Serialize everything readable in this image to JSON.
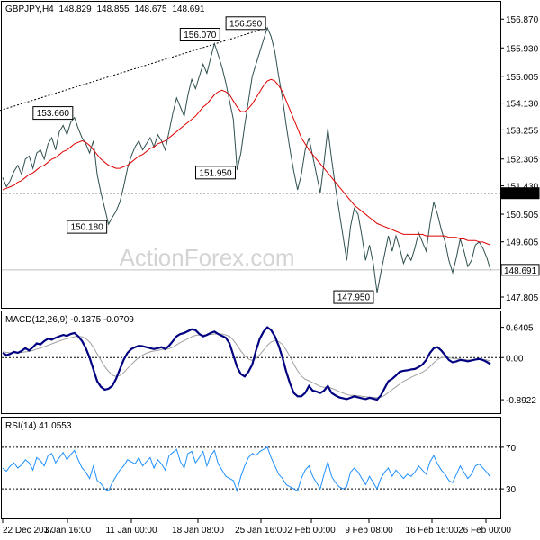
{
  "colors": {
    "price": "#2f4f4f",
    "ma": "#e00000",
    "macd": "#000080",
    "signal": "#a0a0a0",
    "rsi": "#1e90ff",
    "frame": "#000000",
    "ref_line": "#808080"
  },
  "chart_data": [
    {
      "type": "line",
      "panel": "price",
      "symbol": "GBPJPY",
      "timeframe": "H4",
      "ohlc": {
        "open": "148.829",
        "high": "148.855",
        "low": "148.675",
        "close": "148.691"
      },
      "y_ticks": [
        "156.870",
        "155.930",
        "155.005",
        "154.130",
        "153.255",
        "152.305",
        "151.430",
        "150.505",
        "149.605",
        "148.691",
        "147.805"
      ],
      "ylim": [
        147.6,
        157.2
      ],
      "x_ticks": [
        "22 Dec 2017",
        "3 Jan 16:00",
        "11 Jan 00:00",
        "18 Jan 08:00",
        "25 Jan 16:00",
        "2 Feb 00:00",
        "9 Feb 08:00",
        "16 Feb 16:00",
        "26 Feb 00:00"
      ],
      "levels": [
        {
          "value": 151.19,
          "label": "151.190",
          "style": "dotted"
        },
        {
          "value": 148.691,
          "label": "148.691",
          "style": "solid"
        }
      ],
      "annotations": [
        {
          "label": "153.660",
          "value": 153.66,
          "index": 19
        },
        {
          "label": "150.180",
          "value": 150.18,
          "index": 28
        },
        {
          "label": "156.070",
          "value": 156.07,
          "index": 56
        },
        {
          "label": "151.950",
          "value": 151.95,
          "index": 62
        },
        {
          "label": "156.590",
          "value": 156.59,
          "index": 70
        },
        {
          "label": "147.950",
          "value": 147.95,
          "index": 99
        }
      ],
      "trendline": [
        {
          "index": 0,
          "value": 153.9
        },
        {
          "index": 70,
          "value": 156.59
        }
      ],
      "series": [
        {
          "kind": "price",
          "values": [
            151.7,
            151.4,
            151.6,
            151.9,
            152.1,
            151.8,
            152.3,
            152.4,
            152.0,
            152.5,
            152.6,
            152.3,
            152.8,
            153.0,
            152.6,
            153.2,
            153.4,
            153.1,
            153.5,
            153.66,
            153.3,
            153.0,
            152.8,
            152.5,
            152.9,
            151.8,
            151.2,
            150.7,
            150.18,
            150.4,
            150.6,
            150.9,
            151.4,
            152.0,
            152.4,
            152.7,
            152.9,
            152.6,
            152.8,
            153.0,
            152.7,
            153.1,
            152.9,
            152.6,
            153.2,
            153.8,
            154.3,
            154.0,
            153.7,
            154.4,
            154.9,
            154.6,
            155.0,
            155.4,
            155.1,
            155.6,
            156.07,
            155.7,
            155.3,
            154.8,
            154.2,
            153.6,
            151.95,
            152.5,
            153.4,
            154.2,
            155.0,
            155.4,
            155.8,
            156.2,
            156.59,
            156.3,
            155.8,
            155.0,
            154.3,
            153.4,
            152.6,
            151.9,
            151.3,
            151.8,
            152.6,
            153.0,
            152.4,
            151.8,
            151.2,
            152.2,
            153.3,
            152.3,
            151.4,
            150.6,
            149.8,
            149.0,
            150.1,
            150.7,
            150.5,
            149.8,
            149.0,
            149.5,
            148.9,
            147.95,
            148.6,
            149.2,
            149.8,
            149.3,
            149.8,
            149.4,
            148.9,
            149.2,
            149.0,
            149.4,
            149.9,
            149.6,
            149.3,
            150.2,
            150.9,
            150.5,
            150.0,
            149.6,
            149.0,
            148.6,
            149.1,
            149.7,
            149.3,
            148.8,
            149.0,
            149.5,
            149.6,
            149.4,
            149.1,
            148.691
          ]
        },
        {
          "kind": "ma",
          "values": [
            151.3,
            151.35,
            151.4,
            151.45,
            151.55,
            151.6,
            151.7,
            151.8,
            151.85,
            151.95,
            152.05,
            152.1,
            152.2,
            152.3,
            152.35,
            152.45,
            152.55,
            152.6,
            152.7,
            152.8,
            152.85,
            152.9,
            152.85,
            152.75,
            152.6,
            152.45,
            152.3,
            152.2,
            152.1,
            152.05,
            152.0,
            152.0,
            152.05,
            152.1,
            152.2,
            152.3,
            152.4,
            152.45,
            152.55,
            152.65,
            152.7,
            152.8,
            152.85,
            152.9,
            153.0,
            153.1,
            153.2,
            153.3,
            153.4,
            153.5,
            153.6,
            153.7,
            153.85,
            154.0,
            154.1,
            154.25,
            154.4,
            154.5,
            154.55,
            154.5,
            154.4,
            154.2,
            154.0,
            153.85,
            153.85,
            153.95,
            154.1,
            154.3,
            154.5,
            154.7,
            154.85,
            154.9,
            154.85,
            154.7,
            154.5,
            154.2,
            153.9,
            153.6,
            153.3,
            153.0,
            152.8,
            152.6,
            152.45,
            152.3,
            152.15,
            152.0,
            151.85,
            151.7,
            151.55,
            151.4,
            151.25,
            151.1,
            150.95,
            150.8,
            150.7,
            150.6,
            150.5,
            150.4,
            150.3,
            150.2,
            150.15,
            150.1,
            150.05,
            150.0,
            149.95,
            149.9,
            149.85,
            149.85,
            149.85,
            149.85,
            149.85,
            149.85,
            149.8,
            149.8,
            149.8,
            149.8,
            149.8,
            149.8,
            149.75,
            149.75,
            149.75,
            149.7,
            149.7,
            149.65,
            149.65,
            149.65,
            149.6,
            149.6,
            149.55,
            149.5
          ]
        }
      ]
    },
    {
      "type": "line",
      "panel": "macd",
      "label": "MACD(12,26,9) -0.1375 -0.0709",
      "y_ticks": [
        "0.6405",
        "0.00",
        "-0.8922"
      ],
      "ylim": [
        -1.1,
        0.9
      ],
      "zero_line": 0,
      "series": [
        {
          "kind": "macd",
          "values": [
            0.1,
            0.05,
            0.08,
            0.12,
            0.1,
            0.14,
            0.2,
            0.15,
            0.22,
            0.3,
            0.28,
            0.35,
            0.4,
            0.38,
            0.42,
            0.45,
            0.48,
            0.46,
            0.5,
            0.52,
            0.45,
            0.35,
            0.2,
            0.0,
            -0.25,
            -0.5,
            -0.62,
            -0.68,
            -0.66,
            -0.6,
            -0.45,
            -0.25,
            -0.05,
            0.1,
            0.18,
            0.22,
            0.25,
            0.24,
            0.22,
            0.2,
            0.18,
            0.2,
            0.22,
            0.18,
            0.25,
            0.35,
            0.45,
            0.5,
            0.52,
            0.56,
            0.6,
            0.58,
            0.5,
            0.45,
            0.48,
            0.52,
            0.55,
            0.5,
            0.46,
            0.42,
            0.3,
            0.05,
            -0.2,
            -0.35,
            -0.4,
            -0.3,
            -0.15,
            0.15,
            0.4,
            0.55,
            0.64,
            0.58,
            0.45,
            0.25,
            0.0,
            -0.3,
            -0.55,
            -0.75,
            -0.82,
            -0.82,
            -0.75,
            -0.6,
            -0.7,
            -0.72,
            -0.75,
            -0.7,
            -0.6,
            -0.75,
            -0.8,
            -0.84,
            -0.86,
            -0.88,
            -0.85,
            -0.82,
            -0.84,
            -0.86,
            -0.88,
            -0.85,
            -0.87,
            -0.89,
            -0.8,
            -0.65,
            -0.5,
            -0.45,
            -0.38,
            -0.3,
            -0.28,
            -0.27,
            -0.25,
            -0.24,
            -0.2,
            -0.15,
            -0.05,
            0.1,
            0.2,
            0.22,
            0.15,
            0.05,
            -0.05,
            -0.1,
            -0.08,
            -0.05,
            -0.06,
            -0.08,
            -0.06,
            -0.04,
            -0.03,
            -0.05,
            -0.09,
            -0.1375
          ]
        },
        {
          "kind": "signal",
          "values": [
            0.12,
            0.11,
            0.1,
            0.1,
            0.1,
            0.11,
            0.12,
            0.13,
            0.15,
            0.18,
            0.2,
            0.23,
            0.26,
            0.29,
            0.32,
            0.35,
            0.38,
            0.4,
            0.42,
            0.44,
            0.45,
            0.44,
            0.4,
            0.33,
            0.22,
            0.08,
            -0.06,
            -0.19,
            -0.29,
            -0.37,
            -0.4,
            -0.38,
            -0.32,
            -0.23,
            -0.15,
            -0.07,
            0.0,
            0.05,
            0.09,
            0.12,
            0.14,
            0.15,
            0.17,
            0.17,
            0.19,
            0.22,
            0.27,
            0.32,
            0.36,
            0.4,
            0.44,
            0.47,
            0.48,
            0.48,
            0.48,
            0.49,
            0.5,
            0.5,
            0.5,
            0.48,
            0.45,
            0.37,
            0.26,
            0.14,
            0.04,
            -0.03,
            -0.06,
            -0.02,
            0.06,
            0.16,
            0.26,
            0.33,
            0.36,
            0.34,
            0.28,
            0.16,
            0.02,
            -0.14,
            -0.28,
            -0.39,
            -0.46,
            -0.49,
            -0.53,
            -0.57,
            -0.61,
            -0.63,
            -0.62,
            -0.65,
            -0.68,
            -0.72,
            -0.75,
            -0.78,
            -0.8,
            -0.8,
            -0.81,
            -0.82,
            -0.83,
            -0.84,
            -0.84,
            -0.85,
            -0.84,
            -0.8,
            -0.74,
            -0.68,
            -0.62,
            -0.56,
            -0.5,
            -0.46,
            -0.42,
            -0.38,
            -0.35,
            -0.31,
            -0.26,
            -0.19,
            -0.11,
            -0.04,
            0.0,
            0.01,
            0.0,
            -0.02,
            -0.03,
            -0.03,
            -0.04,
            -0.05,
            -0.05,
            -0.05,
            -0.04,
            -0.04,
            -0.05,
            -0.0709
          ]
        }
      ]
    },
    {
      "type": "line",
      "panel": "rsi",
      "label": "RSI(14) 41.0553",
      "y_ticks": [
        "70",
        "30"
      ],
      "ylim": [
        5,
        95
      ],
      "levels": [
        70,
        30
      ],
      "series": [
        {
          "kind": "rsi",
          "values": [
            50,
            47,
            52,
            55,
            50,
            53,
            58,
            55,
            48,
            60,
            57,
            52,
            62,
            64,
            55,
            60,
            65,
            58,
            63,
            67,
            58,
            50,
            46,
            40,
            52,
            38,
            35,
            30,
            28,
            36,
            42,
            48,
            52,
            58,
            56,
            54,
            60,
            52,
            56,
            60,
            50,
            58,
            54,
            48,
            62,
            65,
            68,
            56,
            50,
            64,
            66,
            55,
            60,
            66,
            52,
            62,
            67,
            54,
            48,
            42,
            40,
            38,
            28,
            42,
            52,
            60,
            64,
            62,
            66,
            68,
            70,
            60,
            52,
            44,
            40,
            34,
            32,
            30,
            28,
            40,
            48,
            52,
            42,
            36,
            30,
            44,
            56,
            42,
            36,
            32,
            30,
            32,
            46,
            50,
            46,
            40,
            34,
            42,
            36,
            30,
            40,
            46,
            50,
            42,
            48,
            44,
            40,
            44,
            42,
            46,
            52,
            48,
            44,
            56,
            62,
            54,
            48,
            44,
            38,
            36,
            44,
            52,
            46,
            40,
            44,
            52,
            54,
            50,
            46,
            41.0553
          ]
        }
      ]
    }
  ]
}
